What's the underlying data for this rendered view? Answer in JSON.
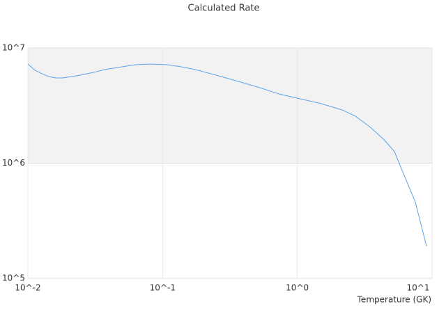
{
  "chart_data": {
    "type": "line",
    "title": "Calculated Rate",
    "x_label": "Temperature (GK)",
    "xscale": "log",
    "yscale": "log",
    "xlim": [
      0.01,
      10
    ],
    "ylim": [
      100000,
      10000000
    ],
    "xticks": [
      {
        "value": 0.01,
        "label": "10^-2"
      },
      {
        "value": 0.1,
        "label": "10^-1"
      },
      {
        "value": 1,
        "label": "10^0"
      },
      {
        "value": 10,
        "label": "10^1"
      }
    ],
    "yticks": [
      {
        "value": 100000,
        "label": "10^5"
      },
      {
        "value": 1000000,
        "label": "10^6"
      },
      {
        "value": 10000000,
        "label": "10^7"
      }
    ],
    "grid": true,
    "x": [
      0.01,
      0.0113,
      0.0127,
      0.0143,
      0.0161,
      0.0181,
      0.023,
      0.031,
      0.0371,
      0.05,
      0.0634,
      0.0805,
      0.1087,
      0.1377,
      0.1744,
      0.25,
      0.38,
      0.545,
      0.73,
      1.047,
      1.5,
      2.15,
      2.7,
      3.45,
      4.38,
      5.26,
      6.3,
      7.5,
      9.1
    ],
    "series": [
      {
        "color": "#5ba3e8",
        "values": [
          7260000,
          6410000,
          5980000,
          5650000,
          5500000,
          5500000,
          5730000,
          6150000,
          6500000,
          6870000,
          7160000,
          7260000,
          7160000,
          6870000,
          6500000,
          5810000,
          5060000,
          4470000,
          3990000,
          3620000,
          3290000,
          2900000,
          2560000,
          2070000,
          1610000,
          1260000,
          752000,
          462000,
          190000
        ]
      }
    ]
  }
}
